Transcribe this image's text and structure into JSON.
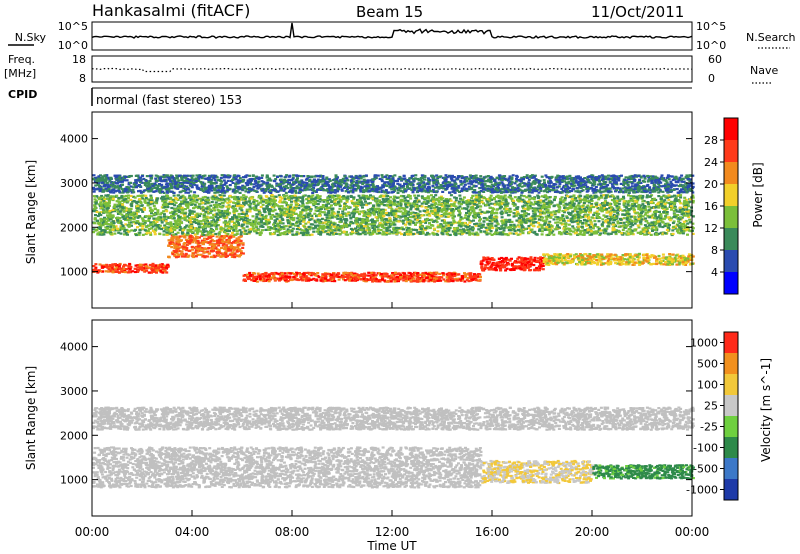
{
  "header": {
    "station": "Hankasalmi (fitACF)",
    "beam": "Beam 15",
    "date": "11/Oct/2011"
  },
  "strips": {
    "nsky_label": "N.Sky",
    "nsearch_label": "N.Search",
    "nsky_ticks": [
      "10^5",
      "10^0"
    ],
    "nsearch_ticks": [
      "10^5",
      "10^0"
    ],
    "freq_label_1": "Freq.",
    "freq_label_2": "[MHz]",
    "freq_ticks": [
      "18",
      "8"
    ],
    "nave_label": "Nave",
    "nave_ticks": [
      "60",
      "0"
    ],
    "cpid_label": "CPID",
    "cpid_text": "normal (fast stereo) 153"
  },
  "colors": {
    "power_scale": [
      "#0000ff",
      "#2a4bb0",
      "#3a8a5a",
      "#7bbf3a",
      "#f2d02a",
      "#f28a1e",
      "#ff3a1a",
      "#ff0000"
    ],
    "velocity_scale": [
      "#1e3aa8",
      "#3c78c8",
      "#2e8a4a",
      "#6fd040",
      "#c8c8c8",
      "#f2c83a",
      "#f2901e",
      "#ff2a1a"
    ],
    "ground_scatter": "#c0c0c0"
  },
  "chart_data": [
    {
      "type": "heatmap",
      "name": "power",
      "xlabel": "",
      "ylabel": "Slant Range [km]",
      "xlim": [
        0,
        24
      ],
      "ylim": [
        180,
        4600
      ],
      "yticks": [
        "4000",
        "3000",
        "2000",
        "1000"
      ],
      "colorbar_label": "Power [dB]",
      "colorbar_ticks": [
        "28",
        "24",
        "20",
        "16",
        "12",
        "8",
        "4"
      ],
      "colorbar_range": [
        0,
        32
      ],
      "bands": [
        {
          "t": [
            0,
            3.0
          ],
          "center": 1100,
          "width": 200,
          "value": 26
        },
        {
          "t": [
            3.0,
            6.0
          ],
          "center": 1600,
          "width": 500,
          "value": 24
        },
        {
          "t": [
            6.0,
            15.5
          ],
          "center": 900,
          "width": 200,
          "value": 26
        },
        {
          "t": [
            15.5,
            18.0
          ],
          "center": 1200,
          "width": 300,
          "value": 28
        },
        {
          "t": [
            18.0,
            24
          ],
          "center": 1300,
          "width": 250,
          "value": 18
        },
        {
          "t": [
            0,
            24
          ],
          "center": 2300,
          "width": 900,
          "value": 13
        },
        {
          "t": [
            0,
            24
          ],
          "center": 3000,
          "width": 400,
          "value": 8
        }
      ]
    },
    {
      "type": "heatmap",
      "name": "velocity",
      "xlabel": "Time UT",
      "ylabel": "Slant Range [km]",
      "xlim": [
        0,
        24
      ],
      "ylim": [
        180,
        4600
      ],
      "xticks": [
        "00:00",
        "04:00",
        "08:00",
        "12:00",
        "16:00",
        "20:00",
        "00:00"
      ],
      "yticks": [
        "4000",
        "3000",
        "2000",
        "1000"
      ],
      "colorbar_label": "Velocity [m s^-1]",
      "colorbar_ticks": [
        "1000",
        "500",
        "100",
        "25",
        "-25",
        "-100",
        "-500",
        "-1000"
      ],
      "colorbar_range": [
        -1200,
        1200
      ],
      "bands": [
        {
          "t": [
            0,
            15.5
          ],
          "center": 1300,
          "width": 900,
          "value": 0,
          "ground_scatter": true
        },
        {
          "t": [
            15.5,
            20.0
          ],
          "center": 1200,
          "width": 500,
          "value": 300
        },
        {
          "t": [
            20.0,
            24
          ],
          "center": 1200,
          "width": 300,
          "value": -400
        },
        {
          "t": [
            0,
            24
          ],
          "center": 2400,
          "width": 500,
          "value": 0,
          "ground_scatter": true
        }
      ]
    }
  ]
}
